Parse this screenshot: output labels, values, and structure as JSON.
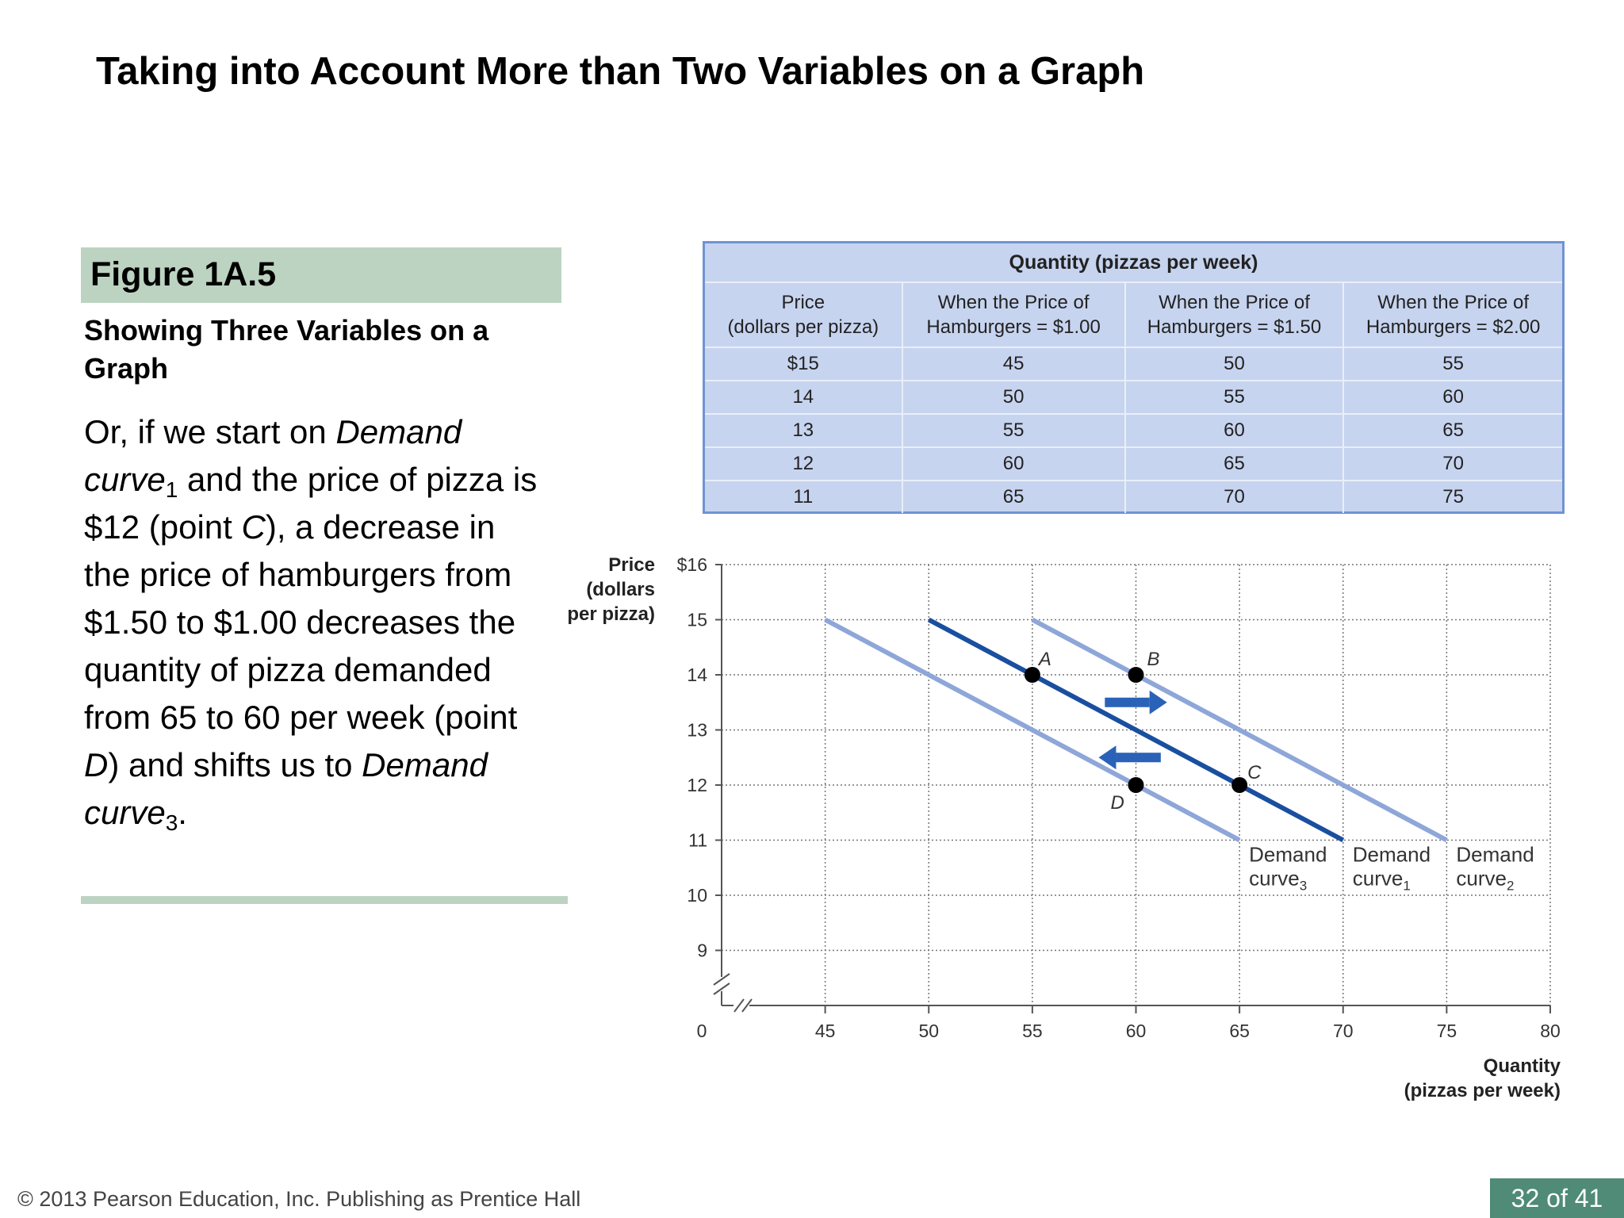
{
  "slide": {
    "title": "Taking into Account More than Two Variables on a Graph",
    "figure_label": "Figure 1A.5",
    "figure_subtitle": "Showing Three Variables on a Graph",
    "body": {
      "p1": "Or, if we start on ",
      "em1": "Demand curve",
      "sub1": "1",
      "p2": " and the price of pizza is $12 (point ",
      "em2": "C",
      "p3": "), a decrease in the price of hamburgers from $1.50 to $1.00 decreases the quantity of pizza demanded from 65 to 60 per week (point ",
      "em3": "D",
      "p4": ") and shifts us to ",
      "em4": "Demand curve",
      "sub4": "3",
      "p5": "."
    },
    "footer": "© 2013 Pearson Education, Inc. Publishing as Prentice Hall",
    "page": "32 of 41",
    "colors": {
      "accent_green": "#bcd3c2",
      "badge": "#4f8b77",
      "curve_dark": "#1a4fa0",
      "curve_light": "#8ea6d8",
      "table_bg": "#c7d4ef"
    }
  },
  "chart_data": [
    {
      "type": "table",
      "title": "Quantity (pizzas per week)",
      "columns": [
        [
          "Price",
          "(dollars per pizza)"
        ],
        [
          "When the Price of",
          "Hamburgers = $1.00"
        ],
        [
          "When the Price of",
          "Hamburgers = $1.50"
        ],
        [
          "When the Price of",
          "Hamburgers = $2.00"
        ]
      ],
      "rows": [
        [
          "$15",
          "45",
          "50",
          "55"
        ],
        [
          "14",
          "50",
          "55",
          "60"
        ],
        [
          "13",
          "55",
          "60",
          "65"
        ],
        [
          "12",
          "60",
          "65",
          "70"
        ],
        [
          "11",
          "65",
          "70",
          "75"
        ]
      ]
    },
    {
      "type": "line",
      "ylabel": [
        "Price",
        "(dollars",
        "per pizza)"
      ],
      "xlabel": [
        "Quantity",
        "(pizzas per week)"
      ],
      "xlim": [
        40,
        80
      ],
      "ylim": [
        8,
        16
      ],
      "axis_break": true,
      "origin_label": "0",
      "x_ticks": [
        45,
        50,
        55,
        60,
        65,
        70,
        75,
        80
      ],
      "y_ticks": [
        9,
        10,
        11,
        12,
        13,
        14,
        15,
        16
      ],
      "y_tick_labels": [
        "9",
        "10",
        "11",
        "12",
        "13",
        "14",
        "15",
        "$16"
      ],
      "grid": true,
      "series": [
        {
          "name": "Demand curve",
          "sub": "3",
          "style": "light",
          "x": [
            45,
            65
          ],
          "y": [
            15,
            11
          ]
        },
        {
          "name": "Demand curve",
          "sub": "1",
          "style": "dark",
          "x": [
            50,
            70
          ],
          "y": [
            15,
            11
          ]
        },
        {
          "name": "Demand curve",
          "sub": "2",
          "style": "light",
          "x": [
            55,
            75
          ],
          "y": [
            15,
            11
          ]
        }
      ],
      "points": [
        {
          "label": "A",
          "x": 55,
          "y": 14
        },
        {
          "label": "B",
          "x": 60,
          "y": 14
        },
        {
          "label": "C",
          "x": 65,
          "y": 12
        },
        {
          "label": "D",
          "x": 60,
          "y": 12
        }
      ],
      "arrows": [
        {
          "direction": "right",
          "x_from": 58.5,
          "x_to": 61.5,
          "y": 13.5
        },
        {
          "direction": "left",
          "x_from": 61.2,
          "x_to": 58.2,
          "y": 12.5
        }
      ]
    }
  ]
}
